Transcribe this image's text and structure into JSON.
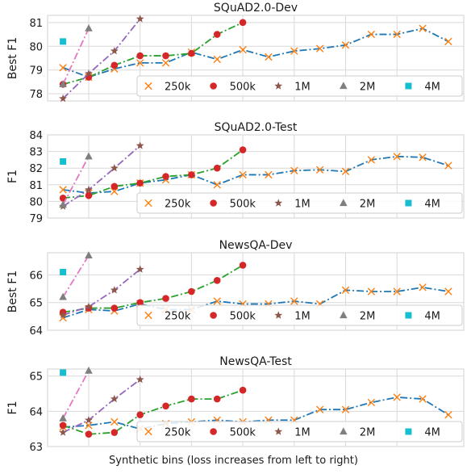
{
  "figure": {
    "xlabel": "Synthetic bins (loss increases from left to right)"
  },
  "colors": {
    "250k": "#1f77b4",
    "500k": "#2ca02c",
    "1M": "#9467bd",
    "2M": "#e377c2",
    "4M": "#17becf",
    "marker_250k": "#ff7f0e",
    "marker_500k": "#d62728",
    "marker_1M": "#8c564b",
    "marker_2M": "#7f7f7f",
    "grid": "#d9d9d9",
    "legend_border": "#cccccc"
  },
  "legend": [
    "250k",
    "500k",
    "1M",
    "2M",
    "4M"
  ],
  "chart_data": [
    {
      "type": "line",
      "title": "SQuAD2.0-Dev",
      "ylabel": "Best F1",
      "ylim": [
        77.7,
        81.3
      ],
      "yticks": [
        78,
        79,
        80,
        81
      ],
      "x": [
        0,
        1,
        2,
        3,
        4,
        5,
        6,
        7,
        8,
        9,
        10,
        11,
        12,
        13,
        14,
        15
      ],
      "series": [
        {
          "name": "250k",
          "x": [
            0,
            1,
            2,
            3,
            4,
            5,
            6,
            7,
            8,
            9,
            10,
            11,
            12,
            13,
            14,
            15
          ],
          "values": [
            79.1,
            78.7,
            79.05,
            79.3,
            79.3,
            79.75,
            79.45,
            79.85,
            79.55,
            79.8,
            79.9,
            80.05,
            80.5,
            80.5,
            80.75,
            80.2
          ]
        },
        {
          "name": "500k",
          "x": [
            0,
            1,
            2,
            3,
            4,
            5,
            6,
            7
          ],
          "values": [
            78.4,
            78.7,
            79.2,
            79.6,
            79.6,
            79.7,
            80.5,
            81.0
          ]
        },
        {
          "name": "1M",
          "x": [
            0,
            1,
            2,
            3
          ],
          "values": [
            77.8,
            78.85,
            79.8,
            81.15
          ]
        },
        {
          "name": "2M",
          "x": [
            0,
            1
          ],
          "values": [
            78.4,
            80.75
          ]
        },
        {
          "name": "4M",
          "x": [
            0
          ],
          "values": [
            80.2
          ]
        }
      ]
    },
    {
      "type": "line",
      "title": "SQuAD2.0-Test",
      "ylabel": "F1",
      "ylim": [
        79.0,
        84.0
      ],
      "yticks": [
        79,
        80,
        81,
        82,
        83,
        84
      ],
      "x": [
        0,
        1,
        2,
        3,
        4,
        5,
        6,
        7,
        8,
        9,
        10,
        11,
        12,
        13,
        14,
        15
      ],
      "series": [
        {
          "name": "250k",
          "x": [
            0,
            1,
            2,
            3,
            4,
            5,
            6,
            7,
            8,
            9,
            10,
            11,
            12,
            13,
            14,
            15
          ],
          "values": [
            80.7,
            80.5,
            80.6,
            81.1,
            81.3,
            81.6,
            81.0,
            81.6,
            81.6,
            81.85,
            81.9,
            81.8,
            82.5,
            82.7,
            82.65,
            82.15
          ]
        },
        {
          "name": "500k",
          "x": [
            0,
            1,
            2,
            3,
            4,
            5,
            6,
            7
          ],
          "values": [
            80.2,
            80.35,
            80.9,
            81.1,
            81.5,
            81.6,
            82.0,
            83.1
          ]
        },
        {
          "name": "1M",
          "x": [
            0,
            1,
            2,
            3
          ],
          "values": [
            79.7,
            80.7,
            82.0,
            83.35
          ]
        },
        {
          "name": "2M",
          "x": [
            0,
            1
          ],
          "values": [
            79.8,
            82.7
          ]
        },
        {
          "name": "4M",
          "x": [
            0
          ],
          "values": [
            82.4
          ]
        }
      ]
    },
    {
      "type": "line",
      "title": "NewsQA-Dev",
      "ylabel": "Best F1",
      "ylim": [
        64.0,
        66.8
      ],
      "yticks": [
        64,
        65,
        66
      ],
      "x": [
        0,
        1,
        2,
        3,
        4,
        5,
        6,
        7,
        8,
        9,
        10,
        11,
        12,
        13,
        14,
        15
      ],
      "series": [
        {
          "name": "250k",
          "x": [
            0,
            1,
            2,
            3,
            4,
            5,
            6,
            7,
            8,
            9,
            10,
            11,
            12,
            13,
            14,
            15
          ],
          "values": [
            64.45,
            64.75,
            64.7,
            64.95,
            64.75,
            64.75,
            65.05,
            64.95,
            64.95,
            65.05,
            64.95,
            65.45,
            65.4,
            65.4,
            65.55,
            65.4
          ]
        },
        {
          "name": "500k",
          "x": [
            0,
            1,
            2,
            3,
            4,
            5,
            6,
            7
          ],
          "values": [
            64.65,
            64.8,
            64.8,
            65.0,
            65.15,
            65.4,
            65.8,
            66.35
          ]
        },
        {
          "name": "1M",
          "x": [
            0,
            1,
            2,
            3
          ],
          "values": [
            64.55,
            64.85,
            65.45,
            66.2
          ]
        },
        {
          "name": "2M",
          "x": [
            0,
            1
          ],
          "values": [
            65.2,
            66.7
          ]
        },
        {
          "name": "4M",
          "x": [
            0
          ],
          "values": [
            66.1
          ]
        }
      ]
    },
    {
      "type": "line",
      "title": "NewsQA-Test",
      "ylabel": "F1",
      "ylim": [
        63.0,
        65.2
      ],
      "yticks": [
        63,
        64,
        65
      ],
      "x": [
        0,
        1,
        2,
        3,
        4,
        5,
        6,
        7,
        8,
        9,
        10,
        11,
        12,
        13,
        14,
        15
      ],
      "series": [
        {
          "name": "250k",
          "x": [
            0,
            1,
            2,
            3,
            4,
            5,
            6,
            7,
            8,
            9,
            10,
            11,
            12,
            13,
            14,
            15
          ],
          "values": [
            63.55,
            63.6,
            63.7,
            63.5,
            63.65,
            63.7,
            63.75,
            63.7,
            63.75,
            63.75,
            64.05,
            64.05,
            64.25,
            64.4,
            64.35,
            63.9
          ]
        },
        {
          "name": "500k",
          "x": [
            0,
            1,
            2,
            3,
            4,
            5,
            6,
            7
          ],
          "values": [
            63.6,
            63.35,
            63.4,
            63.9,
            64.15,
            64.35,
            64.35,
            64.6
          ]
        },
        {
          "name": "1M",
          "x": [
            0,
            1,
            2,
            3
          ],
          "values": [
            63.4,
            63.75,
            64.35,
            64.9
          ]
        },
        {
          "name": "2M",
          "x": [
            0,
            1
          ],
          "values": [
            63.8,
            65.15
          ]
        },
        {
          "name": "4M",
          "x": [
            0
          ],
          "values": [
            65.1
          ]
        }
      ]
    }
  ]
}
